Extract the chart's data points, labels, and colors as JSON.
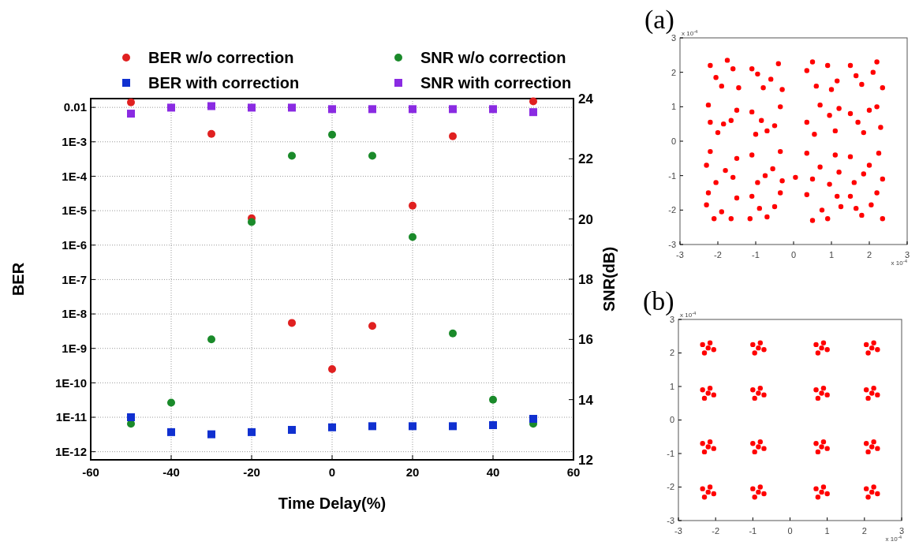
{
  "chart_data": [
    {
      "type": "scatter",
      "xlabel": "Time Delay(%)",
      "ylabel": "BER",
      "y2label": "SNR(dB)",
      "x": [
        -50,
        -40,
        -30,
        -20,
        -10,
        0,
        10,
        20,
        30,
        40,
        50
      ],
      "xlim": [
        -60,
        60
      ],
      "xticks": [
        -60,
        -40,
        -20,
        0,
        20,
        40,
        60
      ],
      "log": "y",
      "ylim": [
        5.8e-13,
        0.018
      ],
      "yticks": [
        {
          "value": 0.01,
          "label": "0.01"
        },
        {
          "value": 0.001,
          "label": "1E-3"
        },
        {
          "value": 0.0001,
          "label": "1E-4"
        },
        {
          "value": 1e-05,
          "label": "1E-5"
        },
        {
          "value": 1e-06,
          "label": "1E-6"
        },
        {
          "value": 1e-07,
          "label": "1E-7"
        },
        {
          "value": 1e-08,
          "label": "1E-8"
        },
        {
          "value": 1e-09,
          "label": "1E-9"
        },
        {
          "value": 1e-10,
          "label": "1E-10"
        },
        {
          "value": 1e-11,
          "label": "1E-11"
        },
        {
          "value": 1e-12,
          "label": "1E-12"
        }
      ],
      "y2lim": [
        12,
        24
      ],
      "y2ticks": [
        12,
        14,
        16,
        18,
        20,
        22,
        24
      ],
      "grid": true,
      "legend": "top",
      "series": [
        {
          "name": "BER w/o correction",
          "color": "#e02020",
          "marker": "circle",
          "values": [
            0.014,
            null,
            0.0017,
            6e-06,
            5.5e-09,
            2.5e-10,
            4.5e-09,
            1.4e-05,
            0.00145,
            null,
            0.015
          ]
        },
        {
          "name": "SNR w/o correction",
          "color": "#1a8a2a",
          "marker": "circle",
          "axis": "y2",
          "values": [
            13.2,
            13.9,
            16.0,
            19.9,
            22.1,
            22.8,
            22.1,
            19.4,
            16.2,
            14.0,
            13.2
          ]
        },
        {
          "name": "BER with correction",
          "color": "#1030d0",
          "marker": "square",
          "values": [
            1e-11,
            3.7e-12,
            3.2e-12,
            3.7e-12,
            4.3e-12,
            5.1e-12,
            5.5e-12,
            5.5e-12,
            5.5e-12,
            5.9e-12,
            9e-12
          ]
        },
        {
          "name": "SNR with correction",
          "color": "#8a2be2",
          "marker": "square",
          "axis": "y2",
          "values": [
            23.5,
            23.7,
            23.75,
            23.7,
            23.7,
            23.65,
            23.65,
            23.65,
            23.65,
            23.65,
            23.55
          ]
        }
      ]
    },
    {
      "type": "scatter",
      "title": "(a)",
      "annotations": [
        "x 10$^{-4}$",
        "x 10$^{-4}$"
      ],
      "xlim": [
        -3,
        3
      ],
      "xticks": [
        -3,
        -2,
        -1,
        0,
        1,
        2,
        3
      ],
      "ylim": [
        -3,
        3
      ],
      "yticks": [
        -3,
        -2,
        -1,
        0,
        1,
        2,
        3
      ],
      "marker": "circle",
      "color": "#ff0000",
      "x": [
        -2.2,
        -1.9,
        -1.6,
        -2.05,
        -1.45,
        -1.75,
        -1.1,
        -0.8,
        -0.4,
        -0.6,
        -0.95,
        -0.3,
        0.35,
        0.6,
        0.9,
        1.15,
        0.5,
        1.0,
        1.5,
        1.8,
        2.1,
        2.35,
        1.65,
        2.2,
        -2.25,
        -1.85,
        -1.5,
        -2.0,
        -1.65,
        -2.2,
        -1.1,
        -0.7,
        -0.35,
        -0.85,
        -0.5,
        -1.0,
        0.35,
        0.7,
        1.1,
        0.55,
        0.95,
        1.2,
        1.5,
        1.85,
        2.2,
        2.3,
        1.7,
        2.0,
        -2.2,
        -1.8,
        -1.5,
        -2.05,
        -1.6,
        -2.3,
        -1.1,
        -0.75,
        -0.35,
        -0.55,
        -0.95,
        -0.3,
        0.35,
        0.7,
        1.1,
        0.5,
        0.95,
        1.2,
        1.5,
        1.85,
        2.25,
        2.35,
        1.6,
        2.0,
        -2.25,
        -1.9,
        -1.5,
        -2.1,
        -1.65,
        -2.3,
        -1.1,
        -0.7,
        -0.35,
        -0.9,
        -0.5,
        -1.15,
        0.35,
        0.75,
        1.15,
        0.5,
        0.9,
        1.25,
        1.5,
        1.8,
        2.2,
        2.35,
        1.65,
        2.05,
        0.05
      ],
      "values": [
        2.2,
        1.6,
        2.1,
        1.85,
        1.55,
        2.35,
        2.1,
        1.55,
        2.25,
        1.8,
        1.95,
        1.5,
        2.05,
        1.6,
        2.2,
        1.75,
        2.3,
        1.5,
        2.2,
        1.65,
        2.0,
        1.55,
        1.9,
        2.3,
        1.05,
        0.5,
        0.9,
        0.25,
        0.6,
        0.55,
        0.85,
        0.3,
        1.0,
        0.6,
        0.45,
        0.2,
        0.55,
        1.05,
        0.3,
        0.2,
        0.75,
        0.95,
        0.8,
        0.25,
        1.0,
        0.4,
        0.55,
        0.9,
        -0.3,
        -0.85,
        -0.5,
        -1.2,
        -1.05,
        -0.7,
        -0.4,
        -1.0,
        -0.3,
        -0.8,
        -1.2,
        -1.15,
        -0.35,
        -0.75,
        -0.4,
        -1.1,
        -1.25,
        -0.9,
        -0.45,
        -0.95,
        -0.35,
        -1.1,
        -1.2,
        -0.7,
        -1.5,
        -2.05,
        -1.65,
        -2.25,
        -2.25,
        -1.85,
        -1.6,
        -2.2,
        -1.5,
        -1.95,
        -1.9,
        -2.25,
        -1.55,
        -2.0,
        -1.6,
        -2.3,
        -2.25,
        -1.9,
        -1.6,
        -2.15,
        -1.5,
        -2.25,
        -1.95,
        -1.85,
        -1.05
      ]
    },
    {
      "type": "scatter",
      "title": "(b)",
      "annotations": [
        "x 10$^{-4}$",
        "x 10$^{-4}$"
      ],
      "xlim": [
        -3,
        3
      ],
      "xticks": [
        -3,
        -2,
        -1,
        0,
        1,
        2,
        3
      ],
      "ylim": [
        -3,
        3
      ],
      "yticks": [
        -3,
        -2,
        -1,
        0,
        1,
        2,
        3
      ],
      "marker": "circle",
      "color": "#ff0000",
      "x": [
        -2.2,
        -2.35,
        -2.05,
        -2.15,
        -2.3,
        -0.85,
        -1.0,
        -0.7,
        -0.8,
        -0.95,
        0.85,
        0.7,
        1.0,
        0.9,
        0.75,
        2.2,
        2.05,
        2.35,
        2.25,
        2.1,
        -2.2,
        -2.35,
        -2.05,
        -2.15,
        -2.3,
        -0.85,
        -1.0,
        -0.7,
        -0.8,
        -0.95,
        0.85,
        0.7,
        1.0,
        0.9,
        0.75,
        2.2,
        2.05,
        2.35,
        2.25,
        2.1,
        -2.2,
        -2.35,
        -2.05,
        -2.15,
        -2.3,
        -0.85,
        -1.0,
        -0.7,
        -0.8,
        -0.95,
        0.85,
        0.7,
        1.0,
        0.9,
        0.75,
        2.2,
        2.05,
        2.35,
        2.25,
        2.1,
        -2.2,
        -2.35,
        -2.05,
        -2.15,
        -2.3,
        -0.85,
        -1.0,
        -0.7,
        -0.8,
        -0.95,
        0.85,
        0.7,
        1.0,
        0.9,
        0.75,
        2.2,
        2.05,
        2.35,
        2.25,
        2.1
      ],
      "values": [
        2.15,
        2.25,
        2.1,
        2.3,
        2.0,
        2.15,
        2.25,
        2.1,
        2.3,
        2.0,
        2.15,
        2.25,
        2.1,
        2.3,
        2.0,
        2.15,
        2.25,
        2.1,
        2.3,
        2.0,
        0.8,
        0.9,
        0.75,
        0.95,
        0.65,
        0.8,
        0.9,
        0.75,
        0.95,
        0.65,
        0.8,
        0.9,
        0.75,
        0.95,
        0.65,
        0.8,
        0.9,
        0.75,
        0.95,
        0.65,
        -0.8,
        -0.7,
        -0.85,
        -0.65,
        -0.95,
        -0.8,
        -0.7,
        -0.85,
        -0.65,
        -0.95,
        -0.8,
        -0.7,
        -0.85,
        -0.65,
        -0.95,
        -0.8,
        -0.7,
        -0.85,
        -0.65,
        -0.95,
        -2.15,
        -2.05,
        -2.2,
        -2.0,
        -2.3,
        -2.15,
        -2.05,
        -2.2,
        -2.0,
        -2.3,
        -2.15,
        -2.05,
        -2.2,
        -2.0,
        -2.3,
        -2.15,
        -2.05,
        -2.2,
        -2.0,
        -2.3
      ]
    }
  ]
}
